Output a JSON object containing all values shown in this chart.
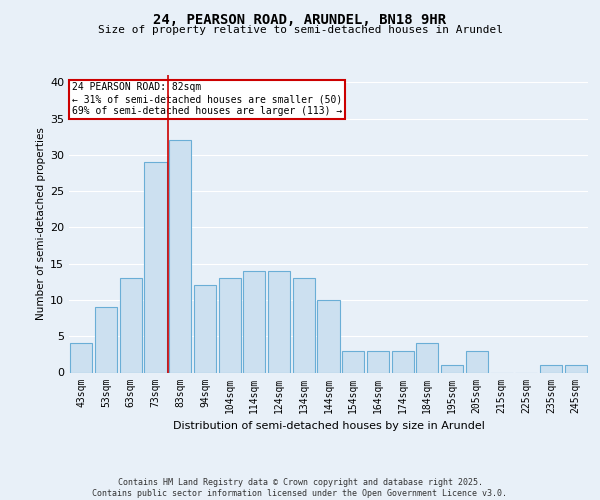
{
  "title1": "24, PEARSON ROAD, ARUNDEL, BN18 9HR",
  "title2": "Size of property relative to semi-detached houses in Arundel",
  "xlabel": "Distribution of semi-detached houses by size in Arundel",
  "ylabel": "Number of semi-detached properties",
  "categories": [
    "43sqm",
    "53sqm",
    "63sqm",
    "73sqm",
    "83sqm",
    "94sqm",
    "104sqm",
    "114sqm",
    "124sqm",
    "134sqm",
    "144sqm",
    "154sqm",
    "164sqm",
    "174sqm",
    "184sqm",
    "195sqm",
    "205sqm",
    "215sqm",
    "225sqm",
    "235sqm",
    "245sqm"
  ],
  "values": [
    4,
    9,
    13,
    29,
    32,
    12,
    13,
    14,
    14,
    13,
    10,
    3,
    3,
    3,
    4,
    1,
    3,
    0,
    0,
    1,
    1
  ],
  "bar_color": "#cce0f0",
  "bar_edge_color": "#6aaed6",
  "red_line_x": 4,
  "annotation_title": "24 PEARSON ROAD: 82sqm",
  "annotation_line1": "← 31% of semi-detached houses are smaller (50)",
  "annotation_line2": "69% of semi-detached houses are larger (113) →",
  "footer1": "Contains HM Land Registry data © Crown copyright and database right 2025.",
  "footer2": "Contains public sector information licensed under the Open Government Licence v3.0.",
  "ylim": [
    0,
    41
  ],
  "yticks": [
    0,
    5,
    10,
    15,
    20,
    25,
    30,
    35,
    40
  ],
  "background_color": "#e8f0f8",
  "grid_color": "#ffffff",
  "annotation_box_color": "#ffffff",
  "annotation_box_edge_color": "#cc0000",
  "red_line_color": "#cc0000"
}
